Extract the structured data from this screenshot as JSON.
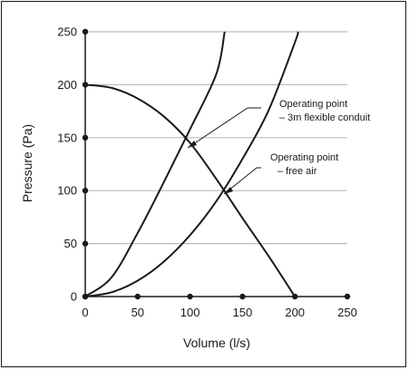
{
  "chart_data": {
    "type": "line",
    "title": "",
    "xlabel": "Volume (l/s)",
    "ylabel": "Pressure (Pa)",
    "xlim": [
      0,
      250
    ],
    "ylim": [
      0,
      250
    ],
    "x_ticks": [
      "0",
      "50",
      "100",
      "150",
      "200",
      "250"
    ],
    "y_ticks": [
      "0",
      "50",
      "100",
      "150",
      "200",
      "250"
    ],
    "grid": "horizontal",
    "series": [
      {
        "x": [
          0,
          25,
          50,
          75,
          100,
          125,
          150,
          175,
          200
        ],
        "y": [
          200,
          197,
          187,
          170,
          145,
          111,
          74,
          38,
          0
        ]
      },
      {
        "x": [
          0,
          25,
          50,
          75,
          100,
          125,
          133
        ],
        "y": [
          0,
          18,
          60,
          108,
          158,
          210,
          250
        ]
      },
      {
        "x": [
          0,
          25,
          50,
          75,
          100,
          125,
          150,
          175,
          200,
          203
        ],
        "y": [
          0,
          4,
          15,
          33,
          58,
          90,
          130,
          176,
          240,
          250
        ]
      }
    ],
    "operating_points": [
      {
        "label_line1": "Operating point",
        "label_line2": "– 3m flexible conduit",
        "x": 98,
        "y": 135
      },
      {
        "label_line1": "Operating point",
        "label_line2": "– free air",
        "x": 131,
        "y": 92
      }
    ]
  }
}
